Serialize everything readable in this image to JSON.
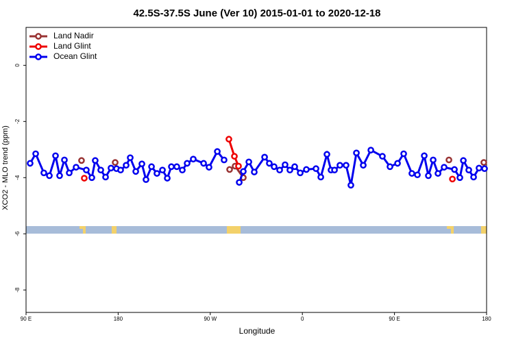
{
  "chart_data": {
    "type": "line",
    "title": "42.5S-37.5S June (Ver 10)   2015-01-01 to 2020-12-18",
    "x_label": "Longitude",
    "y_label": "XCO2 - MLO trend (ppm)",
    "xlim": [
      90,
      540
    ],
    "ylim": [
      -8.8,
      1.35
    ],
    "xticks": [
      {
        "value": 90,
        "label": "90 E"
      },
      180,
      {
        "value": 270,
        "label": "90 W"
      },
      {
        "value": 360,
        "label": "0"
      },
      {
        "value": 450,
        "label": "90 E"
      },
      {
        "value": 540,
        "label": "180"
      }
    ],
    "yticks": [
      0,
      -2,
      -4,
      -6,
      -8
    ],
    "legend": "top-left",
    "series": [
      {
        "name": "Land Nadir",
        "color": "#993333",
        "x": [
          144.2,
          177.1,
          288.9,
          294.3,
          302.3,
          503.2,
          537.3
        ],
        "values": [
          -3.39,
          -3.46,
          -3.71,
          -3.59,
          -4.0,
          -3.37,
          -3.46
        ]
      },
      {
        "name": "Land Glint",
        "color": "#ee0000",
        "x": [
          146.9,
          288.2,
          293.6,
          297.6,
          506.6
        ],
        "values": [
          -4.02,
          -2.63,
          -3.24,
          -3.59,
          -4.05
        ]
      },
      {
        "name": "Ocean Glint",
        "color": "#0000ee",
        "x": [
          94.0,
          99.4,
          107.4,
          112.8,
          118.8,
          122.8,
          127.5,
          132.2,
          138.9,
          148.9,
          154.3,
          157.6,
          163.0,
          167.7,
          173.0,
          178.4,
          182.4,
          187.8,
          191.8,
          197.2,
          203.2,
          207.2,
          212.6,
          217.9,
          223.3,
          228.0,
          232.0,
          237.3,
          242.7,
          247.4,
          253.4,
          263.5,
          268.8,
          276.9,
          283.5,
          298.3,
          302.3,
          307.7,
          313.0,
          323.1,
          327.7,
          332.4,
          337.8,
          343.1,
          347.8,
          352.5,
          357.9,
          363.9,
          373.3,
          378.0,
          384.0,
          388.0,
          391.4,
          396.7,
          402.7,
          407.4,
          412.8,
          419.5,
          426.9,
          438.2,
          445.6,
          453.0,
          459.0,
          467.0,
          472.4,
          479.1,
          483.1,
          487.8,
          492.5,
          498.5,
          508.6,
          513.9,
          517.3,
          522.6,
          527.3,
          532.6,
          538.0
        ],
        "values": [
          -3.49,
          -3.15,
          -3.83,
          -3.93,
          -3.22,
          -3.93,
          -3.37,
          -3.83,
          -3.63,
          -3.73,
          -4.0,
          -3.39,
          -3.73,
          -3.98,
          -3.66,
          -3.68,
          -3.73,
          -3.56,
          -3.29,
          -3.78,
          -3.51,
          -4.07,
          -3.61,
          -3.85,
          -3.73,
          -4.02,
          -3.61,
          -3.61,
          -3.73,
          -3.49,
          -3.34,
          -3.49,
          -3.63,
          -3.07,
          -3.37,
          -4.17,
          -3.78,
          -3.44,
          -3.8,
          -3.27,
          -3.49,
          -3.61,
          -3.73,
          -3.54,
          -3.73,
          -3.61,
          -3.83,
          -3.71,
          -3.68,
          -3.98,
          -3.17,
          -3.73,
          -3.73,
          -3.56,
          -3.56,
          -4.27,
          -3.12,
          -3.56,
          -3.02,
          -3.24,
          -3.61,
          -3.49,
          -3.15,
          -3.85,
          -3.9,
          -3.22,
          -3.93,
          -3.37,
          -3.85,
          -3.63,
          -3.71,
          -4.0,
          -3.39,
          -3.73,
          -3.98,
          -3.66,
          -3.68
        ]
      }
    ]
  }
}
